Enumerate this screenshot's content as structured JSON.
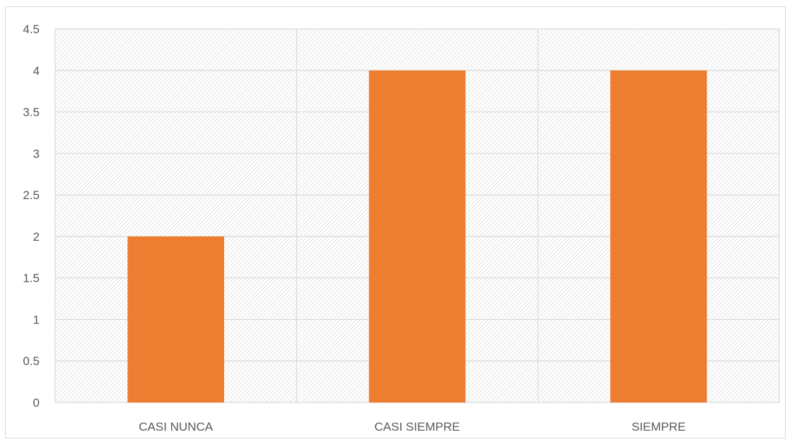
{
  "chart_data": {
    "type": "bar",
    "categories": [
      "CASI NUNCA",
      "CASI SIEMPRE",
      "SIEMPRE"
    ],
    "values": [
      2,
      4,
      4
    ],
    "title": "",
    "xlabel": "",
    "ylabel": "",
    "ylim": [
      0,
      4.5
    ],
    "yticks": [
      "0",
      "0.5",
      "1",
      "1.5",
      "2",
      "2.5",
      "3",
      "3.5",
      "4",
      "4.5"
    ],
    "grid": true,
    "legend": "none",
    "background": "diagonal-hatch",
    "colors": {
      "bar": "#ED7D31",
      "grid": "#D9D9D9",
      "hatch": "#D0D0D0",
      "text": "#595959"
    }
  }
}
